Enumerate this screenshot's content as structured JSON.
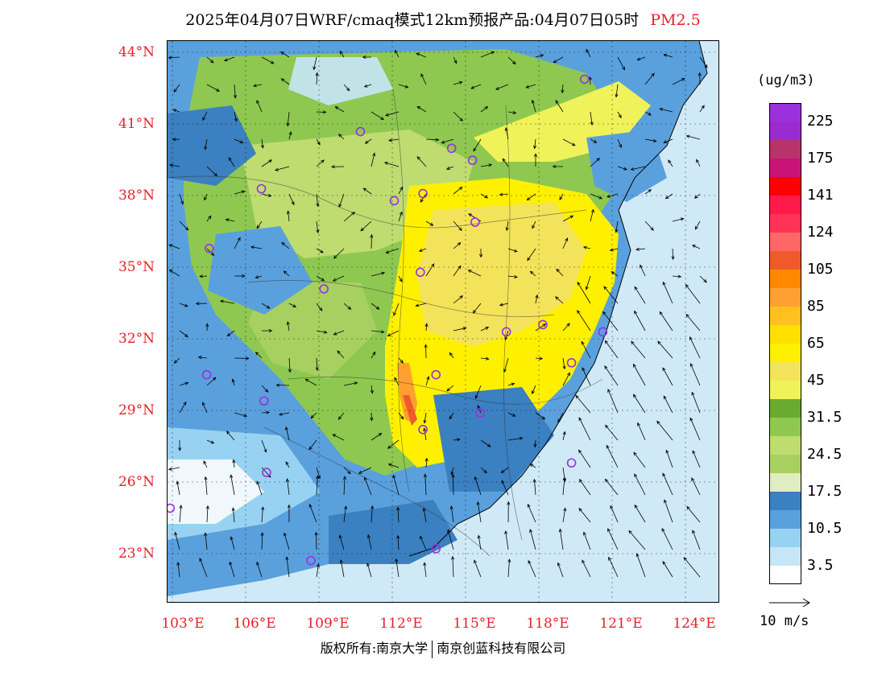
{
  "title": {
    "main": "2025年04月07日WRF/cmaq模式12km预报产品:04月07日05时",
    "variable": "PM2.5"
  },
  "axes": {
    "lat_labels": [
      "44°N",
      "41°N",
      "38°N",
      "35°N",
      "32°N",
      "29°N",
      "26°N",
      "23°N"
    ],
    "lon_labels": [
      "103°E",
      "106°E",
      "109°E",
      "112°E",
      "115°E",
      "118°E",
      "121°E",
      "124°E"
    ]
  },
  "map": {
    "lon_range": [
      102.8,
      124.0
    ],
    "lat_range": [
      21.0,
      44.6
    ],
    "city_markers": [
      {
        "lon": 118.8,
        "lat": 43.0
      },
      {
        "lon": 110.2,
        "lat": 40.8
      },
      {
        "lon": 113.7,
        "lat": 40.1
      },
      {
        "lon": 114.5,
        "lat": 39.6
      },
      {
        "lon": 106.4,
        "lat": 38.4
      },
      {
        "lon": 111.5,
        "lat": 37.9
      },
      {
        "lon": 112.6,
        "lat": 38.2
      },
      {
        "lon": 114.6,
        "lat": 37.0
      },
      {
        "lon": 104.4,
        "lat": 35.9
      },
      {
        "lon": 112.5,
        "lat": 34.9
      },
      {
        "lon": 108.8,
        "lat": 34.2
      },
      {
        "lon": 115.8,
        "lat": 32.4
      },
      {
        "lon": 117.2,
        "lat": 32.7
      },
      {
        "lon": 119.5,
        "lat": 32.4
      },
      {
        "lon": 118.3,
        "lat": 31.1
      },
      {
        "lon": 104.3,
        "lat": 30.6
      },
      {
        "lon": 113.1,
        "lat": 30.6
      },
      {
        "lon": 106.5,
        "lat": 29.5
      },
      {
        "lon": 114.8,
        "lat": 29.0
      },
      {
        "lon": 112.6,
        "lat": 28.3
      },
      {
        "lon": 118.3,
        "lat": 26.9
      },
      {
        "lon": 106.6,
        "lat": 26.5
      },
      {
        "lon": 102.9,
        "lat": 25.0
      },
      {
        "lon": 108.3,
        "lat": 22.8
      },
      {
        "lon": 113.1,
        "lat": 23.3
      }
    ]
  },
  "colorbar": {
    "unit": "(ug/m3)",
    "colors": [
      "#9b30dd",
      "#9a2bce",
      "#b8336a",
      "#c81478",
      "#ff0000",
      "#ff1a4a",
      "#ff3355",
      "#ff6666",
      "#f05a2a",
      "#ff8800",
      "#ffa030",
      "#ffc020",
      "#ffe000",
      "#fff000",
      "#f3e35a",
      "#f0f25a",
      "#6aaa30",
      "#8ec850",
      "#bedc70",
      "#a8d060",
      "#e1ecc0",
      "#3b80c0",
      "#5aa0dd",
      "#98d2f2",
      "#c6e6f7",
      "#ffffff"
    ],
    "tick_labels": [
      "225",
      "175",
      "141",
      "124",
      "105",
      "85",
      "65",
      "45",
      "31.5",
      "24.5",
      "17.5",
      "10.5",
      "3.5"
    ]
  },
  "wind_reference": {
    "label": "10 m/s"
  },
  "footer": {
    "left": "版权所有:南京大学",
    "right": "南京创蓝科技有限公司"
  }
}
